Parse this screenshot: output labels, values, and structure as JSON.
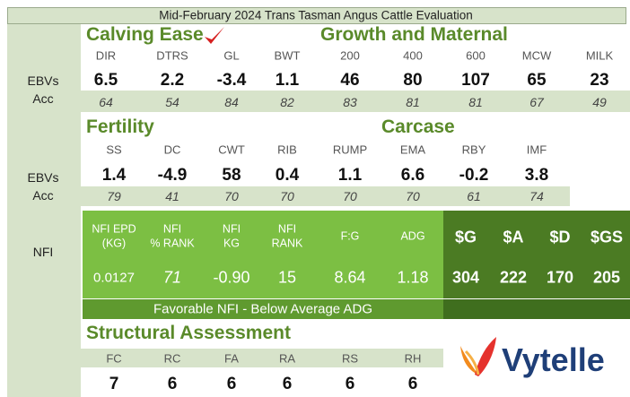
{
  "title": "Mid-February 2024 Trans Tasman Angus Cattle Evaluation",
  "row_labels": {
    "ebvs": "EBVs",
    "acc": "Acc",
    "nfi": "NFI"
  },
  "section1": {
    "left": "Calving Ease",
    "right": "Growth and Maternal",
    "headers": [
      "DIR",
      "DTRS",
      "GL",
      "BWT",
      "200",
      "400",
      "600",
      "MCW",
      "MILK"
    ],
    "ebvs": [
      6.5,
      2.2,
      -3.4,
      1.1,
      46,
      80,
      107,
      65,
      23
    ],
    "acc": [
      64,
      54,
      84,
      82,
      83,
      81,
      81,
      67,
      49
    ]
  },
  "section2": {
    "left": "Fertility",
    "right": "Carcase",
    "headers": [
      "SS",
      "DC",
      "CWT",
      "RIB",
      "RUMP",
      "EMA",
      "RBY",
      "IMF"
    ],
    "ebvs": [
      1.4,
      -4.9,
      58,
      0.4,
      1.1,
      6.6,
      -0.2,
      3.8
    ],
    "acc": [
      79,
      41,
      70,
      70,
      70,
      70,
      61,
      74
    ]
  },
  "nfi": {
    "headers": [
      [
        "NFI EPD",
        "(KG)"
      ],
      [
        "NFI",
        "% RANK"
      ],
      [
        "NFI",
        "KG"
      ],
      [
        "NFI",
        "RANK"
      ],
      [
        "F:G"
      ],
      [
        "ADG"
      ]
    ],
    "values": [
      0.0127,
      71,
      "-0.90",
      15,
      8.64,
      1.18
    ],
    "note": "Favorable NFI - Below Average ADG"
  },
  "indexes": {
    "headers": [
      "$G",
      "$A",
      "$D",
      "$GS"
    ],
    "values": [
      304,
      222,
      170,
      205
    ]
  },
  "structural": {
    "title": "Structural Assessment",
    "headers": [
      "FC",
      "RC",
      "FA",
      "RA",
      "RS",
      "RH"
    ],
    "values": [
      7,
      6,
      6,
      6,
      6,
      6
    ]
  },
  "logo": "Vytelle"
}
